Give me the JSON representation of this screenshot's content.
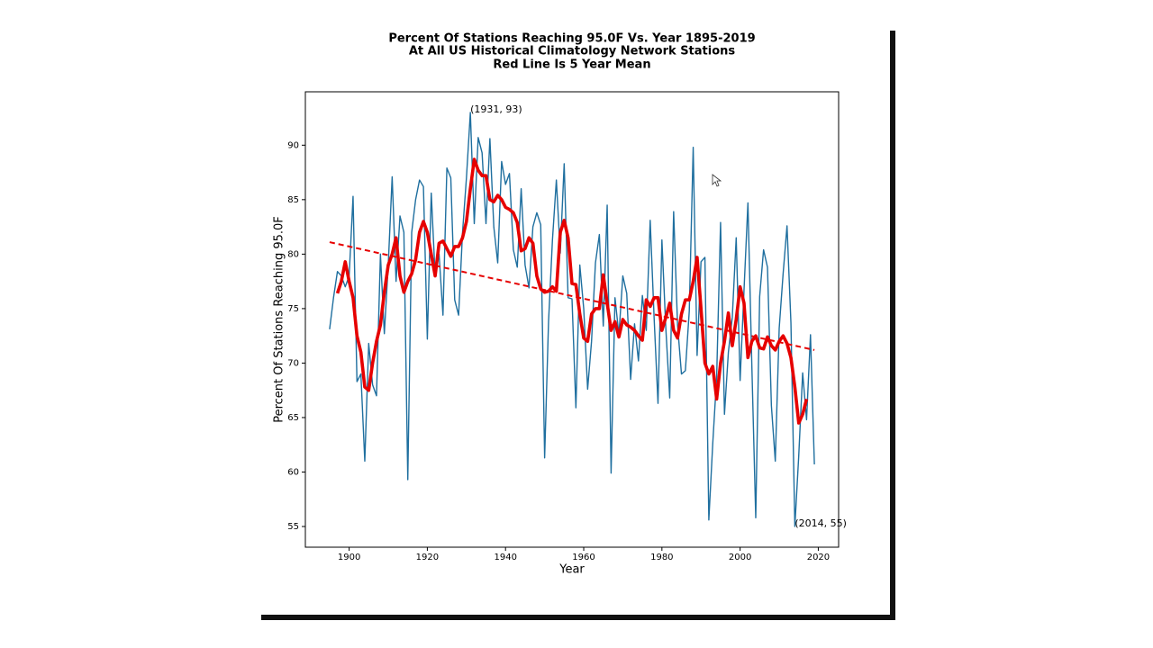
{
  "chart_data": {
    "type": "line",
    "title": [
      "Percent Of Stations Reaching 95.0F Vs. Year 1895-2019",
      "At All US Historical Climatology Network Stations",
      "Red Line Is 5 Year Mean"
    ],
    "xlabel": "Year",
    "ylabel": "Percent Of Stations Reaching 95.0F",
    "x": [
      1895,
      1896,
      1897,
      1898,
      1899,
      1900,
      1901,
      1902,
      1903,
      1904,
      1905,
      1906,
      1907,
      1908,
      1909,
      1910,
      1911,
      1912,
      1913,
      1914,
      1915,
      1916,
      1917,
      1918,
      1919,
      1920,
      1921,
      1922,
      1923,
      1924,
      1925,
      1926,
      1927,
      1928,
      1929,
      1930,
      1931,
      1932,
      1933,
      1934,
      1935,
      1936,
      1937,
      1938,
      1939,
      1940,
      1941,
      1942,
      1943,
      1944,
      1945,
      1946,
      1947,
      1948,
      1949,
      1950,
      1951,
      1952,
      1953,
      1954,
      1955,
      1956,
      1957,
      1958,
      1959,
      1960,
      1961,
      1962,
      1963,
      1964,
      1965,
      1966,
      1967,
      1968,
      1969,
      1970,
      1971,
      1972,
      1973,
      1974,
      1975,
      1976,
      1977,
      1978,
      1979,
      1980,
      1981,
      1982,
      1983,
      1984,
      1985,
      1986,
      1987,
      1988,
      1989,
      1990,
      1991,
      1992,
      1993,
      1994,
      1995,
      1996,
      1997,
      1998,
      1999,
      2000,
      2001,
      2002,
      2003,
      2004,
      2005,
      2006,
      2007,
      2008,
      2009,
      2010,
      2011,
      2012,
      2013,
      2014,
      2015,
      2016,
      2017,
      2018,
      2019
    ],
    "series": [
      {
        "color": "#1f6f9f",
        "width": 1.4,
        "values": [
          73.1,
          76,
          78.4,
          78,
          77,
          78,
          85.3,
          68.3,
          69,
          61,
          71.8,
          68,
          67,
          80,
          72.7,
          79,
          87.1,
          77.5,
          83.5,
          82,
          59.3,
          82,
          85,
          86.8,
          86.2,
          72.2,
          85.6,
          78,
          80,
          74.4,
          87.9,
          87,
          75.8,
          74.4,
          82,
          87,
          93,
          82.8,
          90.7,
          89.3,
          82.8,
          90.6,
          82.5,
          79.2,
          88.5,
          86.4,
          87.4,
          80.4,
          78.8,
          86,
          79,
          76.9,
          82.5,
          83.8,
          82.7,
          61.3,
          73.8,
          81.3,
          86.8,
          80.1,
          88.3,
          76,
          75.9,
          65.9,
          79,
          75,
          67.6,
          72,
          79.2,
          81.8,
          73.4,
          84.5,
          59.9,
          76,
          72.6,
          78,
          76.4,
          68.5,
          73.6,
          70.2,
          76.2,
          73,
          83.1,
          74.2,
          66.3,
          81.3,
          73.2,
          66.8,
          83.9,
          73.5,
          69,
          69.3,
          74.8,
          89.8,
          70.7,
          79.3,
          79.7,
          55.6,
          62.6,
          68.7,
          82.9,
          65.3,
          71,
          74.2,
          81.5,
          68.4,
          76.7,
          84.7,
          69.8,
          55.8,
          76.1,
          80.4,
          78.8,
          66.1,
          61,
          73.2,
          78.2,
          82.6,
          73.7,
          55,
          61.5,
          69.1,
          64.8,
          72.6,
          60.7
        ]
      },
      {
        "color": "#e60000",
        "width": 3.6,
        "values": [
          null,
          null,
          76.4,
          77.5,
          79.3,
          77.5,
          76,
          72.5,
          71,
          67.8,
          67.5,
          70,
          72,
          73.5,
          76.5,
          79,
          80,
          81.5,
          78,
          76.5,
          77.5,
          78.2,
          79.5,
          82,
          83,
          82,
          80,
          78,
          81,
          81.2,
          80.5,
          79.8,
          80.7,
          80.7,
          81.5,
          83,
          86,
          88.7,
          87.7,
          87.2,
          87.2,
          85,
          84.8,
          85.4,
          85,
          84.3,
          84.1,
          83.8,
          82.9,
          80.3,
          80.5,
          81.5,
          81,
          78,
          76.8,
          76.5,
          76.6,
          77,
          76.6,
          82,
          83.1,
          81.5,
          77.3,
          77.2,
          74.5,
          72.3,
          72,
          74.5,
          75,
          75,
          78.1,
          75.5,
          73,
          73.8,
          72.4,
          74,
          73.5,
          73.3,
          73,
          72.5,
          72.1,
          75.8,
          75.2,
          76,
          76,
          73,
          74.2,
          75.5,
          73,
          72.3,
          74.5,
          75.8,
          75.8,
          77.5,
          79.7,
          75,
          70,
          69,
          69.7,
          66.7,
          70,
          72,
          74.6,
          71.6,
          74,
          77,
          75.5,
          70.5,
          72,
          72.5,
          71.4,
          71.3,
          72.4,
          71.6,
          71.2,
          72,
          72.5,
          71.8,
          70.5,
          67.8,
          64.5,
          65.3,
          66.7,
          null,
          null
        ]
      }
    ],
    "trend": {
      "color": "#e60000",
      "x": [
        1895,
        2019
      ],
      "values": [
        81.1,
        71.2
      ]
    },
    "annotations": [
      {
        "text": "(1931, 93)",
        "x": 1931,
        "y": 93
      },
      {
        "text": "(2014, 55)",
        "x": 2014,
        "y": 55
      }
    ],
    "xlim": [
      1888.8,
      2025.2
    ],
    "ylim": [
      53.1,
      94.9
    ],
    "xticks": [
      1900,
      1920,
      1940,
      1960,
      1980,
      2000,
      2020
    ],
    "yticks": [
      55,
      60,
      65,
      70,
      75,
      80,
      85,
      90
    ]
  }
}
